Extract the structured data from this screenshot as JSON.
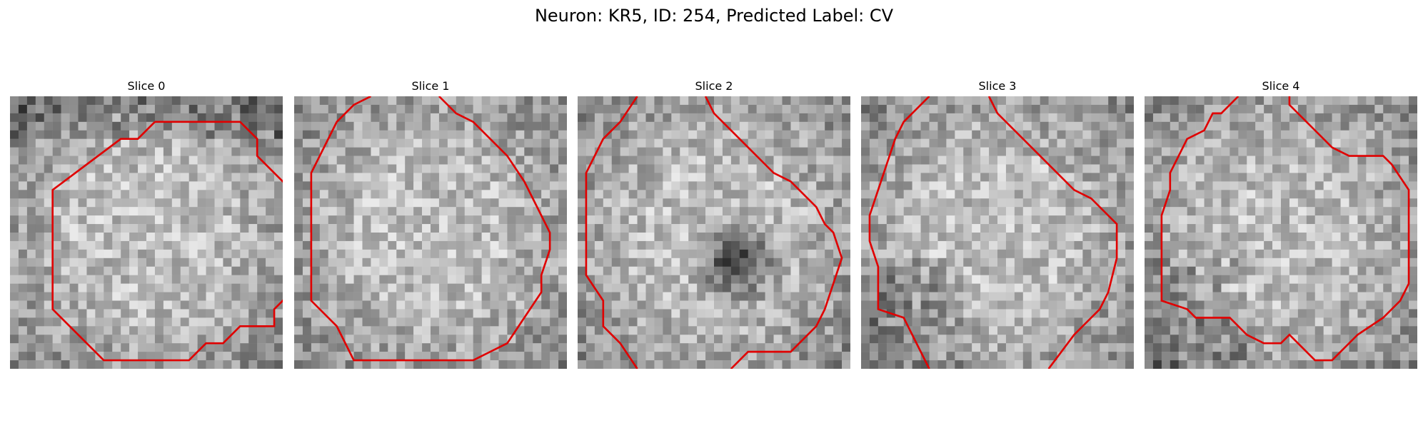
{
  "figure": {
    "title": "Neuron: KR5, ID: 254, Predicted Label: CV"
  },
  "panels": [
    {
      "title": "Slice 0",
      "contour_color": "#e00000",
      "contours": [
        [
          [
            8.5,
            1.5
          ],
          [
            13.5,
            1.5
          ],
          [
            14.5,
            2.5
          ],
          [
            14.5,
            3.5
          ],
          [
            15.5,
            4.5
          ],
          [
            16.5,
            5.5
          ],
          [
            16.5,
            11.5
          ],
          [
            15.5,
            12.5
          ],
          [
            15.5,
            13.5
          ],
          [
            13.5,
            13.5
          ],
          [
            12.5,
            14.5
          ],
          [
            11.5,
            14.5
          ],
          [
            10.5,
            15.5
          ],
          [
            5.5,
            15.5
          ],
          [
            2.5,
            12.5
          ],
          [
            2.5,
            5.5
          ],
          [
            6.5,
            2.5
          ],
          [
            7.5,
            2.5
          ],
          [
            8.5,
            1.5
          ]
        ]
      ]
    },
    {
      "title": "Slice 1",
      "contour_color": "#e00000",
      "contours": [
        [
          [
            4.5,
            0.0
          ],
          [
            3.5,
            0.5
          ],
          [
            2.5,
            1.5
          ],
          [
            1.5,
            3.5
          ],
          [
            1.0,
            4.5
          ],
          [
            1.0,
            12.0
          ],
          [
            2.5,
            13.5
          ],
          [
            3.5,
            15.5
          ],
          [
            10.5,
            15.5
          ],
          [
            11.5,
            15.0
          ],
          [
            12.5,
            14.5
          ],
          [
            13.5,
            13.0
          ],
          [
            14.5,
            11.5
          ],
          [
            14.5,
            10.5
          ],
          [
            15.0,
            9.0
          ],
          [
            15.0,
            8.0
          ],
          [
            14.5,
            7.0
          ],
          [
            13.5,
            5.0
          ],
          [
            12.5,
            3.5
          ],
          [
            11.5,
            2.5
          ],
          [
            10.5,
            1.5
          ],
          [
            9.5,
            1.0
          ],
          [
            8.5,
            0.0
          ]
        ]
      ]
    },
    {
      "title": "Slice 2",
      "contour_color": "#e00000",
      "contours": [
        [
          [
            3.5,
            0.0
          ],
          [
            2.5,
            1.5
          ],
          [
            1.5,
            2.5
          ],
          [
            1.0,
            3.5
          ],
          [
            0.5,
            4.5
          ],
          [
            0.5,
            10.5
          ],
          [
            1.5,
            12.0
          ],
          [
            1.5,
            13.5
          ],
          [
            2.5,
            14.5
          ],
          [
            3.5,
            16.0
          ]
        ],
        [
          [
            7.5,
            0.0
          ],
          [
            8.0,
            1.0
          ],
          [
            8.5,
            1.5
          ],
          [
            10.5,
            3.5
          ],
          [
            11.0,
            4.0
          ],
          [
            11.5,
            4.5
          ],
          [
            12.5,
            5.0
          ],
          [
            13.0,
            5.5
          ],
          [
            14.0,
            6.5
          ],
          [
            14.5,
            7.5
          ],
          [
            15.0,
            8.0
          ],
          [
            15.5,
            9.5
          ],
          [
            15.0,
            11.0
          ],
          [
            14.5,
            12.5
          ],
          [
            14.0,
            13.5
          ],
          [
            13.0,
            14.5
          ],
          [
            12.5,
            15.0
          ],
          [
            11.0,
            15.0
          ],
          [
            10.0,
            15.0
          ],
          [
            9.0,
            16.0
          ]
        ]
      ]
    },
    {
      "title": "Slice 3",
      "contour_color": "#e00000",
      "contours": [
        [
          [
            4.0,
            0.0
          ],
          [
            2.5,
            1.5
          ],
          [
            2.0,
            2.5
          ],
          [
            1.5,
            4.0
          ],
          [
            1.0,
            5.5
          ],
          [
            0.5,
            7.0
          ],
          [
            0.5,
            8.5
          ],
          [
            1.0,
            10.0
          ],
          [
            1.0,
            11.5
          ],
          [
            1.0,
            12.5
          ],
          [
            2.5,
            13.0
          ],
          [
            3.0,
            14.0
          ],
          [
            3.5,
            15.0
          ],
          [
            4.0,
            16.0
          ]
        ],
        [
          [
            7.5,
            0.0
          ],
          [
            8.0,
            1.0
          ],
          [
            9.5,
            2.5
          ],
          [
            10.5,
            3.5
          ],
          [
            11.5,
            4.5
          ],
          [
            12.5,
            5.5
          ],
          [
            13.5,
            6.0
          ],
          [
            14.5,
            7.0
          ],
          [
            15.0,
            7.5
          ],
          [
            15.0,
            9.5
          ],
          [
            14.5,
            11.5
          ],
          [
            14.0,
            12.5
          ],
          [
            13.5,
            13.0
          ],
          [
            12.5,
            14.0
          ],
          [
            11.0,
            16.0
          ]
        ]
      ]
    },
    {
      "title": "Slice 4",
      "contour_color": "#e00000",
      "contours": [
        [
          [
            5.5,
            0.0
          ],
          [
            4.5,
            1.0
          ],
          [
            4.0,
            1.0
          ],
          [
            3.5,
            2.0
          ],
          [
            2.5,
            2.5
          ],
          [
            2.0,
            3.5
          ],
          [
            1.5,
            4.5
          ],
          [
            1.5,
            5.5
          ],
          [
            1.0,
            7.0
          ],
          [
            1.0,
            12.0
          ],
          [
            2.5,
            12.5
          ],
          [
            3.0,
            13.0
          ],
          [
            5.0,
            13.0
          ],
          [
            6.0,
            14.0
          ],
          [
            7.0,
            14.5
          ],
          [
            8.0,
            14.5
          ],
          [
            8.5,
            14.0
          ],
          [
            10.0,
            15.5
          ],
          [
            11.0,
            15.5
          ],
          [
            12.5,
            14.0
          ],
          [
            14.0,
            13.0
          ],
          [
            15.0,
            12.0
          ],
          [
            15.5,
            11.0
          ],
          [
            15.5,
            5.5
          ],
          [
            14.5,
            4.0
          ],
          [
            14.0,
            3.5
          ],
          [
            12.0,
            3.5
          ],
          [
            11.0,
            3.0
          ],
          [
            10.5,
            2.5
          ],
          [
            10.0,
            2.0
          ],
          [
            9.5,
            1.5
          ],
          [
            9.0,
            1.0
          ],
          [
            8.5,
            0.5
          ],
          [
            8.5,
            0.0
          ]
        ]
      ]
    }
  ]
}
